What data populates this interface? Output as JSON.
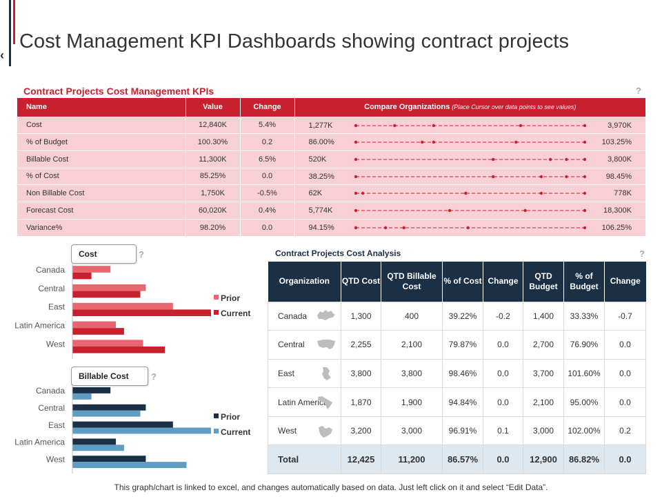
{
  "title": "Cost Management KPI Dashboards showing contract projects",
  "help_mark": "?",
  "kpi": {
    "title": "Contract Projects Cost Management KPIs",
    "headers": {
      "name": "Name",
      "value": "Value",
      "change": "Change",
      "compare": "Compare Organizations",
      "compare_hint": "(Place Cursor over data points to see values)"
    },
    "rows": [
      {
        "name": "Cost",
        "value": "12,840K",
        "change": "5.4%",
        "min": "1,277K",
        "max": "3,970K",
        "points": [
          0.0,
          0.17,
          0.34,
          0.72,
          1.0
        ]
      },
      {
        "name": "% of Budget",
        "value": "100.30%",
        "change": "0.2",
        "min": "86.00%",
        "max": "103.25%",
        "points": [
          0.0,
          0.29,
          0.34,
          0.7,
          1.0
        ]
      },
      {
        "name": "Billable  Cost",
        "value": "11,300K",
        "change": "6.5%",
        "min": "520K",
        "max": "3,800K",
        "points": [
          0.0,
          0.6,
          0.85,
          0.92,
          1.0
        ]
      },
      {
        "name": "% of Cost",
        "value": "85.25%",
        "change": "0.0",
        "min": "38.25%",
        "max": "98.45%",
        "points": [
          0.0,
          0.6,
          0.81,
          0.92,
          1.0
        ]
      },
      {
        "name": "Non Billable  Cost",
        "value": "1,750K",
        "change": "-0.5%",
        "min": "62K",
        "max": "778K",
        "points": [
          0.0,
          0.03,
          0.48,
          0.81,
          1.0
        ]
      },
      {
        "name": "Forecast Cost",
        "value": "60,020K",
        "change": "0.4%",
        "min": "5,774K",
        "max": "18,300K",
        "points": [
          0.0,
          0.41,
          0.74,
          1.0
        ]
      },
      {
        "name": "Variance%",
        "value": "98.20%",
        "change": "0.0",
        "min": "94.15%",
        "max": "106.25%",
        "points": [
          0.0,
          0.13,
          0.21,
          0.49,
          1.0
        ]
      }
    ]
  },
  "cost_chart": {
    "label": "Cost",
    "legend": [
      "Prior",
      "Current"
    ],
    "colors": {
      "prior": "#e8666f",
      "current": "#c8202f"
    }
  },
  "billable_chart": {
    "label": "Billable  Cost",
    "legend": [
      "Prior",
      "Current"
    ],
    "colors": {
      "prior": "#1b2f45",
      "current": "#5f9ec2"
    }
  },
  "chart_data": [
    {
      "type": "bar",
      "title": "Cost",
      "categories": [
        "Canada",
        "Central",
        "East",
        "Latin America",
        "West"
      ],
      "series": [
        {
          "name": "Prior",
          "values": [
            1400,
            2700,
            3700,
            1600,
            2600
          ]
        },
        {
          "name": "Current",
          "values": [
            700,
            2500,
            5100,
            1900,
            3400
          ]
        }
      ],
      "xlim": [
        0,
        5100
      ]
    },
    {
      "type": "bar",
      "title": "Billable  Cost",
      "categories": [
        "Canada",
        "Central",
        "East",
        "Latin America",
        "West"
      ],
      "series": [
        {
          "name": "Prior",
          "values": [
            1400,
            2700,
            3700,
            1600,
            2700
          ]
        },
        {
          "name": "Current",
          "values": [
            700,
            2500,
            5100,
            1900,
            4200
          ]
        }
      ],
      "xlim": [
        0,
        5100
      ]
    }
  ],
  "analysis": {
    "title": "Contract Projects Cost Analysis",
    "headers": [
      "Organization",
      "QTD Cost",
      "QTD Billable Cost",
      "% of Cost",
      "Change",
      "QTD Budget",
      "% of Budget",
      "Change"
    ],
    "rows": [
      {
        "org": "Canada",
        "icon": "canada-map-icon",
        "qtd_cost": "1,300",
        "billable": "400",
        "pct_cost": "39.22%",
        "change": "-0.2",
        "budget": "1,400",
        "pct_budget": "33.33%",
        "change2": "-0.7"
      },
      {
        "org": "Central",
        "icon": "usa-map-icon",
        "qtd_cost": "2,255",
        "billable": "2,100",
        "pct_cost": "79.87%",
        "change": "0.0",
        "budget": "2,700",
        "pct_budget": "76.90%",
        "change2": "0.0"
      },
      {
        "org": "East",
        "icon": "east-map-icon",
        "qtd_cost": "3,800",
        "billable": "3,800",
        "pct_cost": "98.46%",
        "change": "0.0",
        "budget": "3,700",
        "pct_budget": "101.60%",
        "change2": "0.0"
      },
      {
        "org": "Latin America",
        "icon": "latin-america-map-icon",
        "qtd_cost": "1,870",
        "billable": "1,900",
        "pct_cost": "94.84%",
        "change": "0.0",
        "budget": "2,100",
        "pct_budget": "95.00%",
        "change2": "0.0"
      },
      {
        "org": "West",
        "icon": "west-map-icon",
        "qtd_cost": "3,200",
        "billable": "3,000",
        "pct_cost": "96.91%",
        "change": "0.1",
        "budget": "3,000",
        "pct_budget": "102.00%",
        "change2": "0.2"
      }
    ],
    "total": {
      "org": "Total",
      "qtd_cost": "12,425",
      "billable": "11,200",
      "pct_cost": "86.57%",
      "change": "0.0",
      "budget": "12,900",
      "pct_budget": "86.82%",
      "change2": "0.0"
    }
  },
  "footer": "This graph/chart  is linked to excel, and changes automatically  based on data.  Just left click on it and select “Edit Data”."
}
